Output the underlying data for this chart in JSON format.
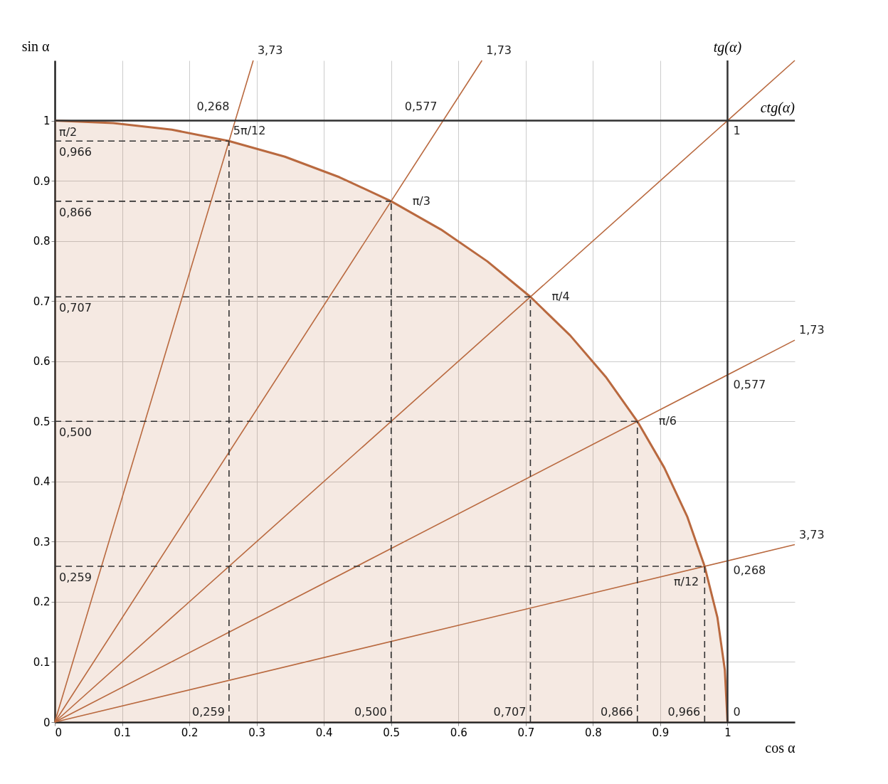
{
  "chart_data": {
    "type": "line",
    "xlabel": "cos α",
    "ylabel": "sin α",
    "xlim": [
      0,
      1.1
    ],
    "ylim": [
      0,
      1.1
    ],
    "xticks": [
      0,
      0.1,
      0.2,
      0.3,
      0.4,
      0.5,
      0.6,
      0.7,
      0.8,
      0.9,
      1
    ],
    "yticks": [
      0,
      0.1,
      0.2,
      0.3,
      0.4,
      0.5,
      0.6,
      0.7,
      0.8,
      0.9,
      1
    ],
    "grid": true,
    "legend": false,
    "series": [
      {
        "type": "area",
        "color": "#b9693f",
        "x": [
          1,
          0.996,
          0.985,
          0.966,
          0.94,
          0.906,
          0.866,
          0.819,
          0.766,
          0.707,
          0.643,
          0.574,
          0.5,
          0.423,
          0.342,
          0.259,
          0.174,
          0.087,
          0
        ],
        "values": [
          0,
          0.087,
          0.174,
          0.259,
          0.342,
          0.423,
          0.5,
          0.574,
          0.643,
          0.707,
          0.766,
          0.819,
          0.866,
          0.906,
          0.94,
          0.966,
          0.985,
          0.996,
          1
        ]
      },
      {
        "type": "line",
        "color": "#b9693f",
        "x": [
          0,
          1.1
        ],
        "values": [
          0,
          0.295
        ]
      },
      {
        "type": "line",
        "color": "#b9693f",
        "x": [
          0,
          1.1
        ],
        "values": [
          0,
          0.635
        ]
      },
      {
        "type": "line",
        "color": "#b9693f",
        "x": [
          0,
          1.1
        ],
        "values": [
          0,
          1.1
        ]
      },
      {
        "type": "line",
        "color": "#b9693f",
        "x": [
          0,
          0.635
        ],
        "values": [
          0,
          1.1
        ]
      },
      {
        "type": "line",
        "color": "#b9693f",
        "x": [
          0,
          0.295
        ],
        "values": [
          0,
          1.1
        ]
      },
      {
        "type": "line",
        "color": "#333333",
        "line_style": "dashed",
        "x": [
          0,
          0.966
        ],
        "values": [
          0.259,
          0.259
        ]
      },
      {
        "type": "line",
        "color": "#333333",
        "line_style": "dashed",
        "x": [
          0.966,
          0.966
        ],
        "values": [
          0,
          0.259
        ]
      },
      {
        "type": "line",
        "color": "#333333",
        "line_style": "dashed",
        "x": [
          0,
          0.866
        ],
        "values": [
          0.5,
          0.5
        ]
      },
      {
        "type": "line",
        "color": "#333333",
        "line_style": "dashed",
        "x": [
          0.866,
          0.866
        ],
        "values": [
          0,
          0.5
        ]
      },
      {
        "type": "line",
        "color": "#333333",
        "line_style": "dashed",
        "x": [
          0,
          0.707
        ],
        "values": [
          0.707,
          0.707
        ]
      },
      {
        "type": "line",
        "color": "#333333",
        "line_style": "dashed",
        "x": [
          0.707,
          0.707
        ],
        "values": [
          0,
          0.707
        ]
      },
      {
        "type": "line",
        "color": "#333333",
        "line_style": "dashed",
        "x": [
          0,
          0.5
        ],
        "values": [
          0.866,
          0.866
        ]
      },
      {
        "type": "line",
        "color": "#333333",
        "line_style": "dashed",
        "x": [
          0.5,
          0.5
        ],
        "values": [
          0,
          0.866
        ]
      },
      {
        "type": "line",
        "color": "#333333",
        "line_style": "dashed",
        "x": [
          0,
          0.259
        ],
        "values": [
          0.966,
          0.966
        ]
      },
      {
        "type": "line",
        "color": "#333333",
        "line_style": "dashed",
        "x": [
          0.259,
          0.259
        ],
        "values": [
          0,
          0.966
        ]
      }
    ],
    "ref_lines": [
      {
        "axis": "x",
        "value": 1,
        "label": "tg(α)",
        "color": "#333333"
      },
      {
        "axis": "y",
        "value": 1,
        "label": "ctg(α)",
        "color": "#333333"
      }
    ],
    "annotations": [
      {
        "text": "π/12",
        "x": 0.966,
        "y": 0.259
      },
      {
        "text": "π/6",
        "x": 0.866,
        "y": 0.5
      },
      {
        "text": "π/4",
        "x": 0.707,
        "y": 0.707
      },
      {
        "text": "π/3",
        "x": 0.5,
        "y": 0.866
      },
      {
        "text": "5π/12",
        "x": 0.259,
        "y": 0.966
      },
      {
        "text": "π/2",
        "x": 0,
        "y": 1
      },
      {
        "text": "0,259",
        "x": 0,
        "y": 0.259
      },
      {
        "text": "0,500",
        "x": 0,
        "y": 0.5
      },
      {
        "text": "0,707",
        "x": 0,
        "y": 0.707
      },
      {
        "text": "0,866",
        "x": 0,
        "y": 0.866
      },
      {
        "text": "0,966",
        "x": 0,
        "y": 0.966
      },
      {
        "text": "0,259",
        "x": 0.259,
        "y": 0
      },
      {
        "text": "0,500",
        "x": 0.5,
        "y": 0
      },
      {
        "text": "0,707",
        "x": 0.707,
        "y": 0
      },
      {
        "text": "0,866",
        "x": 0.866,
        "y": 0
      },
      {
        "text": "0,966",
        "x": 0.966,
        "y": 0
      },
      {
        "text": "0",
        "x": 1,
        "y": 0
      },
      {
        "text": "0,268",
        "x": 1,
        "y": 0.268
      },
      {
        "text": "0,577",
        "x": 1,
        "y": 0.577
      },
      {
        "text": "1",
        "x": 1,
        "y": 1
      },
      {
        "text": "0,268",
        "x": 0.268,
        "y": 1
      },
      {
        "text": "0,577",
        "x": 0.577,
        "y": 1
      },
      {
        "text": "3,73",
        "x": 1.1,
        "y": 0.295
      },
      {
        "text": "1,73",
        "x": 1.1,
        "y": 0.635
      },
      {
        "text": "1,73",
        "x": 0.635,
        "y": 1.1
      },
      {
        "text": "3,73",
        "x": 0.295,
        "y": 1.1
      }
    ]
  }
}
